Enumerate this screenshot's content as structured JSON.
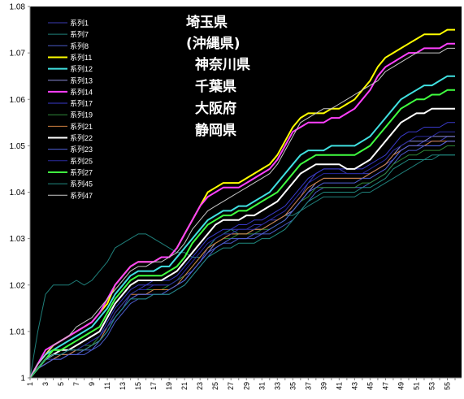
{
  "chart_data": {
    "type": "line",
    "title": "",
    "xlabel": "",
    "ylabel": "",
    "x": [
      1,
      2,
      3,
      4,
      5,
      6,
      7,
      8,
      9,
      10,
      11,
      12,
      13,
      14,
      15,
      16,
      17,
      18,
      19,
      20,
      21,
      22,
      23,
      24,
      25,
      26,
      27,
      28,
      29,
      30,
      31,
      32,
      33,
      34,
      35,
      36,
      37,
      38,
      39,
      40,
      41,
      42,
      43,
      44,
      45,
      46,
      47,
      48,
      49,
      50,
      51,
      52,
      53,
      54,
      55,
      56
    ],
    "xticks": [
      1,
      3,
      5,
      7,
      9,
      11,
      13,
      15,
      17,
      19,
      21,
      23,
      25,
      27,
      29,
      31,
      33,
      35,
      37,
      39,
      41,
      43,
      45,
      47,
      49,
      51,
      53,
      55
    ],
    "ylim": [
      1.0,
      1.08
    ],
    "yticks": [
      1,
      1.01,
      1.02,
      1.03,
      1.04,
      1.05,
      1.06,
      1.07,
      1.08
    ],
    "grid": false,
    "legend_position": "top-left",
    "background": "#000000",
    "annotations": [
      "埼玉県",
      "(沖縄県)",
      "神奈川県",
      "千葉県",
      "大阪府",
      "静岡県"
    ],
    "series": [
      {
        "name": "系列1",
        "color": "#3c3cb4",
        "width": 1,
        "values": [
          1.0,
          1.002,
          1.004,
          1.004,
          1.005,
          1.005,
          1.006,
          1.006,
          1.007,
          1.008,
          1.011,
          1.013,
          1.015,
          1.018,
          1.019,
          1.02,
          1.02,
          1.02,
          1.02,
          1.021,
          1.022,
          1.023,
          1.025,
          1.028,
          1.03,
          1.031,
          1.032,
          1.032,
          1.032,
          1.033,
          1.033,
          1.034,
          1.034,
          1.035,
          1.037,
          1.039,
          1.042,
          1.044,
          1.045,
          1.045,
          1.045,
          1.044,
          1.044,
          1.044,
          1.044,
          1.045,
          1.046,
          1.047,
          1.049,
          1.05,
          1.05,
          1.051,
          1.051,
          1.051,
          1.052,
          1.052
        ]
      },
      {
        "name": "系列7",
        "color": "#1f7f7a",
        "width": 1,
        "values": [
          1.0,
          1.01,
          1.018,
          1.02,
          1.02,
          1.02,
          1.021,
          1.02,
          1.021,
          1.023,
          1.025,
          1.028,
          1.029,
          1.03,
          1.031,
          1.031,
          1.03,
          1.029,
          1.028,
          1.027,
          1.027,
          1.026,
          1.026,
          1.028,
          1.03,
          1.031,
          1.032,
          1.031,
          1.031,
          1.032,
          1.032,
          1.033,
          1.034,
          1.035,
          1.035,
          1.036,
          1.037,
          1.038,
          1.039,
          1.039,
          1.039,
          1.039,
          1.039,
          1.04,
          1.04,
          1.041,
          1.042,
          1.043,
          1.044,
          1.045,
          1.046,
          1.047,
          1.047,
          1.048,
          1.048,
          1.048
        ]
      },
      {
        "name": "系列8",
        "color": "#4a5ac8",
        "width": 1,
        "values": [
          1.0,
          1.002,
          1.003,
          1.004,
          1.004,
          1.005,
          1.005,
          1.005,
          1.006,
          1.007,
          1.009,
          1.012,
          1.014,
          1.016,
          1.017,
          1.017,
          1.018,
          1.018,
          1.018,
          1.019,
          1.02,
          1.022,
          1.024,
          1.026,
          1.028,
          1.029,
          1.029,
          1.03,
          1.03,
          1.03,
          1.031,
          1.031,
          1.032,
          1.033,
          1.034,
          1.036,
          1.038,
          1.04,
          1.041,
          1.041,
          1.041,
          1.041,
          1.041,
          1.041,
          1.042,
          1.043,
          1.044,
          1.046,
          1.048,
          1.049,
          1.049,
          1.05,
          1.05,
          1.05,
          1.051,
          1.051
        ]
      },
      {
        "name": "系列11",
        "color": "#ffff00",
        "width": 2,
        "values": [
          1.0,
          1.003,
          1.005,
          1.007,
          1.008,
          1.009,
          1.01,
          1.011,
          1.012,
          1.014,
          1.016,
          1.02,
          1.022,
          1.024,
          1.025,
          1.025,
          1.025,
          1.026,
          1.026,
          1.028,
          1.031,
          1.034,
          1.037,
          1.04,
          1.041,
          1.042,
          1.042,
          1.042,
          1.043,
          1.044,
          1.045,
          1.046,
          1.048,
          1.051,
          1.054,
          1.056,
          1.057,
          1.057,
          1.057,
          1.058,
          1.058,
          1.059,
          1.06,
          1.062,
          1.064,
          1.067,
          1.069,
          1.07,
          1.071,
          1.072,
          1.073,
          1.074,
          1.074,
          1.074,
          1.075,
          1.075
        ]
      },
      {
        "name": "系列12",
        "color": "#40e0e0",
        "width": 2,
        "values": [
          1.0,
          1.003,
          1.005,
          1.006,
          1.007,
          1.008,
          1.009,
          1.01,
          1.011,
          1.013,
          1.015,
          1.018,
          1.02,
          1.022,
          1.023,
          1.023,
          1.023,
          1.024,
          1.024,
          1.026,
          1.028,
          1.03,
          1.032,
          1.034,
          1.035,
          1.036,
          1.036,
          1.037,
          1.037,
          1.038,
          1.039,
          1.04,
          1.042,
          1.044,
          1.046,
          1.048,
          1.049,
          1.049,
          1.049,
          1.05,
          1.05,
          1.05,
          1.05,
          1.051,
          1.052,
          1.054,
          1.056,
          1.058,
          1.06,
          1.061,
          1.062,
          1.063,
          1.063,
          1.064,
          1.065,
          1.065
        ]
      },
      {
        "name": "系列13",
        "color": "#8a8ad8",
        "width": 1,
        "values": [
          1.0,
          1.002,
          1.003,
          1.004,
          1.005,
          1.005,
          1.006,
          1.006,
          1.007,
          1.008,
          1.01,
          1.013,
          1.015,
          1.017,
          1.018,
          1.018,
          1.019,
          1.019,
          1.019,
          1.02,
          1.021,
          1.023,
          1.025,
          1.027,
          1.029,
          1.03,
          1.031,
          1.031,
          1.031,
          1.032,
          1.032,
          1.033,
          1.034,
          1.035,
          1.036,
          1.038,
          1.04,
          1.042,
          1.043,
          1.043,
          1.043,
          1.043,
          1.043,
          1.043,
          1.044,
          1.045,
          1.046,
          1.048,
          1.05,
          1.051,
          1.051,
          1.051,
          1.052,
          1.052,
          1.052,
          1.052
        ]
      },
      {
        "name": "系列14",
        "color": "#ff40ff",
        "width": 2,
        "values": [
          1.0,
          1.003,
          1.006,
          1.007,
          1.008,
          1.009,
          1.01,
          1.011,
          1.012,
          1.014,
          1.017,
          1.02,
          1.022,
          1.024,
          1.025,
          1.025,
          1.025,
          1.026,
          1.026,
          1.028,
          1.031,
          1.034,
          1.037,
          1.039,
          1.04,
          1.041,
          1.041,
          1.041,
          1.042,
          1.043,
          1.044,
          1.045,
          1.047,
          1.05,
          1.053,
          1.054,
          1.055,
          1.055,
          1.055,
          1.056,
          1.056,
          1.057,
          1.058,
          1.06,
          1.062,
          1.065,
          1.067,
          1.068,
          1.069,
          1.07,
          1.07,
          1.071,
          1.071,
          1.071,
          1.072,
          1.072
        ]
      },
      {
        "name": "系列17",
        "color": "#3a3acb",
        "width": 1,
        "values": [
          1.0,
          1.002,
          1.004,
          1.005,
          1.005,
          1.006,
          1.006,
          1.007,
          1.008,
          1.009,
          1.012,
          1.015,
          1.017,
          1.019,
          1.02,
          1.02,
          1.021,
          1.021,
          1.021,
          1.022,
          1.024,
          1.026,
          1.028,
          1.03,
          1.031,
          1.032,
          1.032,
          1.033,
          1.033,
          1.034,
          1.034,
          1.035,
          1.036,
          1.037,
          1.039,
          1.041,
          1.043,
          1.044,
          1.045,
          1.045,
          1.045,
          1.045,
          1.045,
          1.045,
          1.046,
          1.047,
          1.048,
          1.05,
          1.052,
          1.053,
          1.053,
          1.054,
          1.054,
          1.054,
          1.055,
          1.055
        ]
      },
      {
        "name": "系列19",
        "color": "#2f8a3a",
        "width": 1,
        "values": [
          1.0,
          1.002,
          1.004,
          1.005,
          1.005,
          1.006,
          1.006,
          1.007,
          1.007,
          1.009,
          1.011,
          1.014,
          1.016,
          1.018,
          1.019,
          1.019,
          1.019,
          1.019,
          1.02,
          1.021,
          1.022,
          1.024,
          1.026,
          1.028,
          1.029,
          1.03,
          1.03,
          1.031,
          1.031,
          1.031,
          1.032,
          1.032,
          1.033,
          1.034,
          1.036,
          1.038,
          1.039,
          1.041,
          1.041,
          1.041,
          1.041,
          1.041,
          1.041,
          1.042,
          1.042,
          1.043,
          1.044,
          1.046,
          1.047,
          1.048,
          1.048,
          1.049,
          1.049,
          1.049,
          1.05,
          1.05
        ]
      },
      {
        "name": "系列21",
        "color": "#d08040",
        "width": 1,
        "values": [
          1.0,
          1.002,
          1.003,
          1.004,
          1.005,
          1.005,
          1.006,
          1.006,
          1.007,
          1.008,
          1.011,
          1.014,
          1.016,
          1.018,
          1.018,
          1.018,
          1.019,
          1.019,
          1.019,
          1.02,
          1.022,
          1.024,
          1.026,
          1.028,
          1.029,
          1.03,
          1.031,
          1.031,
          1.031,
          1.032,
          1.032,
          1.033,
          1.034,
          1.035,
          1.037,
          1.039,
          1.041,
          1.042,
          1.043,
          1.043,
          1.043,
          1.043,
          1.043,
          1.043,
          1.044,
          1.045,
          1.046,
          1.048,
          1.049,
          1.05,
          1.05,
          1.05,
          1.051,
          1.051,
          1.051,
          1.051
        ]
      },
      {
        "name": "系列22",
        "color": "#ffffff",
        "width": 2,
        "values": [
          1.0,
          1.002,
          1.004,
          1.005,
          1.006,
          1.006,
          1.007,
          1.008,
          1.009,
          1.01,
          1.013,
          1.016,
          1.018,
          1.02,
          1.021,
          1.021,
          1.021,
          1.021,
          1.022,
          1.023,
          1.025,
          1.027,
          1.029,
          1.031,
          1.033,
          1.034,
          1.034,
          1.034,
          1.035,
          1.035,
          1.036,
          1.037,
          1.038,
          1.04,
          1.042,
          1.044,
          1.045,
          1.046,
          1.046,
          1.046,
          1.046,
          1.045,
          1.045,
          1.046,
          1.047,
          1.049,
          1.051,
          1.053,
          1.055,
          1.056,
          1.057,
          1.057,
          1.058,
          1.058,
          1.058,
          1.058
        ]
      },
      {
        "name": "系列23",
        "color": "#5060d8",
        "width": 1,
        "values": [
          1.0,
          1.002,
          1.003,
          1.004,
          1.004,
          1.005,
          1.005,
          1.006,
          1.006,
          1.008,
          1.01,
          1.013,
          1.015,
          1.017,
          1.018,
          1.018,
          1.018,
          1.018,
          1.019,
          1.02,
          1.021,
          1.023,
          1.025,
          1.027,
          1.028,
          1.029,
          1.03,
          1.03,
          1.03,
          1.031,
          1.031,
          1.032,
          1.033,
          1.034,
          1.036,
          1.038,
          1.04,
          1.041,
          1.042,
          1.042,
          1.042,
          1.042,
          1.042,
          1.043,
          1.043,
          1.044,
          1.045,
          1.047,
          1.049,
          1.05,
          1.05,
          1.05,
          1.05,
          1.05,
          1.051,
          1.051
        ]
      },
      {
        "name": "系列25",
        "color": "#2a2aa0",
        "width": 1,
        "values": [
          1.0,
          1.002,
          1.004,
          1.005,
          1.005,
          1.006,
          1.006,
          1.007,
          1.008,
          1.009,
          1.011,
          1.014,
          1.016,
          1.018,
          1.019,
          1.019,
          1.02,
          1.02,
          1.02,
          1.021,
          1.023,
          1.025,
          1.027,
          1.029,
          1.03,
          1.031,
          1.031,
          1.032,
          1.032,
          1.032,
          1.033,
          1.034,
          1.035,
          1.036,
          1.038,
          1.04,
          1.042,
          1.043,
          1.044,
          1.044,
          1.044,
          1.044,
          1.044,
          1.044,
          1.045,
          1.046,
          1.047,
          1.049,
          1.05,
          1.051,
          1.052,
          1.052,
          1.052,
          1.053,
          1.053,
          1.053
        ]
      },
      {
        "name": "系列27",
        "color": "#40ff40",
        "width": 2,
        "values": [
          1.0,
          1.002,
          1.004,
          1.006,
          1.006,
          1.007,
          1.008,
          1.009,
          1.01,
          1.011,
          1.014,
          1.017,
          1.019,
          1.021,
          1.022,
          1.022,
          1.022,
          1.022,
          1.023,
          1.024,
          1.026,
          1.029,
          1.031,
          1.033,
          1.034,
          1.035,
          1.035,
          1.036,
          1.036,
          1.037,
          1.038,
          1.039,
          1.04,
          1.042,
          1.044,
          1.046,
          1.047,
          1.048,
          1.048,
          1.048,
          1.048,
          1.048,
          1.048,
          1.049,
          1.05,
          1.052,
          1.054,
          1.056,
          1.058,
          1.059,
          1.06,
          1.06,
          1.061,
          1.061,
          1.062,
          1.062
        ]
      },
      {
        "name": "系列45",
        "color": "#208a80",
        "width": 1,
        "values": [
          1.0,
          1.002,
          1.004,
          1.005,
          1.005,
          1.006,
          1.006,
          1.006,
          1.007,
          1.008,
          1.01,
          1.013,
          1.015,
          1.017,
          1.017,
          1.017,
          1.018,
          1.018,
          1.018,
          1.019,
          1.02,
          1.022,
          1.024,
          1.026,
          1.027,
          1.028,
          1.028,
          1.029,
          1.029,
          1.029,
          1.03,
          1.03,
          1.031,
          1.032,
          1.034,
          1.036,
          1.038,
          1.039,
          1.04,
          1.04,
          1.04,
          1.04,
          1.04,
          1.041,
          1.041,
          1.042,
          1.043,
          1.045,
          1.046,
          1.047,
          1.047,
          1.047,
          1.048,
          1.048,
          1.048,
          1.048
        ]
      },
      {
        "name": "系列47",
        "color": "#c8c8c8",
        "width": 1,
        "values": [
          1.0,
          1.003,
          1.005,
          1.007,
          1.008,
          1.009,
          1.011,
          1.012,
          1.013,
          1.015,
          1.017,
          1.019,
          1.021,
          1.023,
          1.024,
          1.024,
          1.025,
          1.025,
          1.026,
          1.027,
          1.029,
          1.032,
          1.034,
          1.036,
          1.037,
          1.038,
          1.039,
          1.04,
          1.041,
          1.042,
          1.043,
          1.044,
          1.046,
          1.049,
          1.052,
          1.055,
          1.056,
          1.057,
          1.058,
          1.058,
          1.059,
          1.06,
          1.061,
          1.062,
          1.063,
          1.064,
          1.066,
          1.067,
          1.068,
          1.069,
          1.07,
          1.07,
          1.07,
          1.07,
          1.071,
          1.071
        ]
      }
    ]
  }
}
